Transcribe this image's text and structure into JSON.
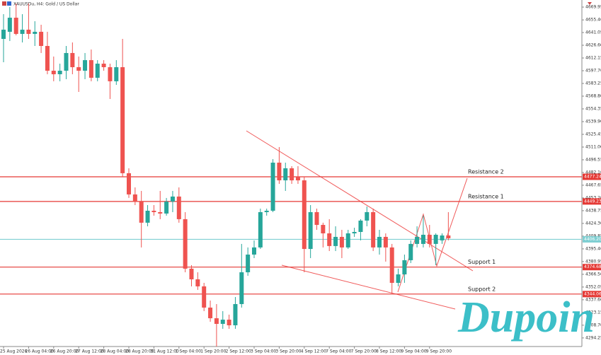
{
  "chart_data": {
    "type": "candlestick",
    "title": "XAUUSDu, H4:  Gold / US Dollar",
    "logo": "Dupoin",
    "categories": [
      "25 Aug 2026",
      null,
      null,
      null,
      "26 Aug 04:00",
      null,
      null,
      null,
      "26 Aug 20:00",
      null,
      null,
      null,
      "27 Aug 12:00",
      null,
      null,
      null,
      "28 Aug 04:00",
      null,
      null,
      null,
      "28 Aug 20:00",
      null,
      null,
      null,
      "31 Aug 12:00",
      null,
      null,
      null,
      "1 Sep 04:00",
      null,
      null,
      null,
      "1 Sep 20:00",
      null,
      null,
      null,
      "2 Sep 12:00",
      null,
      null,
      null,
      "3 Sep 04:00",
      null,
      null,
      null,
      "3 Sep 20:00",
      null,
      null,
      null,
      "4 Sep 12:00",
      null,
      null,
      null,
      "7 Sep 04:00",
      null,
      null,
      null,
      "7 Sep 20:00",
      null,
      null,
      null,
      "8 Sep 12:00",
      null,
      null,
      null,
      "9 Sep 04:00",
      null,
      null,
      null,
      "9 Sep 20:00",
      null,
      null,
      null
    ],
    "open": [
      4633.8,
      4641.9,
      4657.9,
      4639.5,
      4644.3,
      4639.5,
      4641.9,
      4625.8,
      4597.7,
      4593.7,
      4597.7,
      4617.8,
      4601.7,
      4597.7,
      4609.7,
      4589.7,
      4605.7,
      4601.7,
      4585.7,
      4601.7,
      4481.3,
      4457.2,
      4449.1,
      4425.1,
      4438.7,
      4437.1,
      4435.5,
      4449.1,
      4454.8,
      4429.1,
      4372.9,
      4360.8,
      4352.8,
      4328.7,
      4316.6,
      4310.2,
      4315.0,
      4308.6,
      4332.7,
      4368.8,
      4388.9,
      4397.0,
      4437.1,
      4438.7,
      4493.3,
      4473.2,
      4486.9,
      4477.3,
      4473.2,
      4395.3,
      4437.1,
      4422.6,
      4413.0,
      4398.6,
      4409.0,
      4397.0,
      4413.0,
      4414.6,
      4427.5,
      4437.1,
      4397.0,
      4409.0,
      4397.0,
      4356.8,
      4366.4,
      4382.5,
      4401.0,
      4401.0,
      4411.4,
      4401.0,
      4405.0,
      4410.6
    ],
    "high": [
      4661.9,
      4670.0,
      4674.0,
      4661.9,
      4674.0,
      4653.9,
      4649.9,
      4641.9,
      4613.8,
      4605.7,
      4625.8,
      4629.8,
      4613.8,
      4617.8,
      4621.8,
      4609.7,
      4609.7,
      4605.7,
      4609.7,
      4633.8,
      4486.9,
      4465.2,
      4461.2,
      4445.1,
      4445.1,
      4461.2,
      4453.2,
      4461.2,
      4465.2,
      4437.1,
      4376.9,
      4368.8,
      4356.8,
      4336.7,
      4332.7,
      4324.7,
      4320.7,
      4340.7,
      4401.0,
      4397.0,
      4405.0,
      4441.1,
      4441.1,
      4497.3,
      4511.0,
      4493.3,
      4489.3,
      4489.3,
      4477.3,
      4445.1,
      4441.1,
      4425.1,
      4429.1,
      4421.0,
      4417.0,
      4417.0,
      4419.4,
      4429.1,
      4443.5,
      4441.1,
      4417.0,
      4413.0,
      4401.0,
      4372.9,
      4388.9,
      4405.0,
      4421.0,
      4433.1,
      4422.6,
      4413.0,
      4413.0,
      4437.1
    ],
    "low": [
      4607.3,
      4631.4,
      4637.9,
      4629.8,
      4633.8,
      4625.8,
      4617.8,
      4593.7,
      4585.7,
      4585.7,
      4588.1,
      4593.7,
      4573.6,
      4588.1,
      4585.7,
      4585.7,
      4597.7,
      4565.6,
      4581.6,
      4477.3,
      4453.2,
      4445.1,
      4397.0,
      4421.0,
      4433.1,
      4429.1,
      4433.1,
      4437.1,
      4425.1,
      4368.8,
      4352.8,
      4348.8,
      4324.7,
      4312.6,
      4284.5,
      4304.6,
      4304.6,
      4304.6,
      4328.7,
      4364.8,
      4384.9,
      4395.3,
      4433.1,
      4437.1,
      4469.2,
      4461.2,
      4469.2,
      4469.2,
      4368.8,
      4384.9,
      4417.0,
      4397.0,
      4392.9,
      4392.9,
      4384.9,
      4395.3,
      4409.0,
      4405.0,
      4421.0,
      4392.9,
      4388.9,
      4380.9,
      4344.8,
      4352.8,
      4356.8,
      4379.3,
      4397.0,
      4397.0,
      4397.0,
      4376.9,
      4401.0,
      4405.0
    ],
    "close": [
      4644.3,
      4657.9,
      4639.5,
      4644.3,
      4639.5,
      4641.9,
      4625.8,
      4597.7,
      4593.7,
      4597.7,
      4617.8,
      4601.7,
      4597.7,
      4609.7,
      4589.7,
      4605.7,
      4601.7,
      4585.7,
      4601.7,
      4481.3,
      4457.2,
      4449.1,
      4425.1,
      4438.7,
      4437.1,
      4435.5,
      4449.1,
      4454.8,
      4429.1,
      4372.9,
      4360.8,
      4352.8,
      4328.7,
      4316.6,
      4310.2,
      4315.0,
      4308.6,
      4332.7,
      4368.8,
      4388.9,
      4397.0,
      4437.1,
      4438.7,
      4493.3,
      4473.2,
      4486.9,
      4473.2,
      4473.2,
      4395.3,
      4437.1,
      4422.6,
      4413.0,
      4398.6,
      4409.0,
      4397.0,
      4413.0,
      4414.6,
      4427.5,
      4437.1,
      4397.0,
      4409.0,
      4397.0,
      4356.8,
      4366.4,
      4382.5,
      4401.0,
      4409.0,
      4411.4,
      4401.0,
      4411.4,
      4410.6,
      4407.4
    ],
    "up_color": "#26a69a",
    "down_color": "#ef5350",
    "ylim": [
      4284.5,
      4678.0
    ],
    "yticks": [
      4669.95,
      {
        "value": 4655.4,
        "label": "4655.40"
      },
      4641.05,
      {
        "value": 4626.6,
        "label": "4626.60"
      },
      4612.15,
      {
        "value": 4597.7,
        "label": "4597.70"
      },
      4583.25,
      {
        "value": 4568.8,
        "label": "4568.80"
      },
      4554.35,
      {
        "value": 4539.9,
        "label": "4539.90"
      },
      4525.45,
      {
        "value": 4511,
        "label": "4511.00"
      },
      4496.55,
      {
        "value": 4482.1,
        "label": "4482.10"
      },
      4467.65,
      {
        "value": 4453.2,
        "label": "4453.20"
      },
      4438.75,
      {
        "value": 4424.3,
        "label": "4424.30"
      },
      4409.85,
      {
        "value": 4395.4,
        "label": "4395.40"
      },
      4380.95,
      {
        "value": 4366.5,
        "label": "4366.50"
      },
      4352.05,
      {
        "value": 4337.6,
        "label": "4337.60"
      },
      4323.15,
      {
        "value": 4308.7,
        "label": "4308.70"
      },
      4294.25
    ],
    "levels": [
      {
        "name": "Resistance 2",
        "value": 4477.24,
        "color": "#e53935"
      },
      {
        "name": "Resistance 1",
        "value": 4449.23,
        "color": "#e53935"
      },
      {
        "value": 4406.2,
        "value_label": "4406.20",
        "color": "#7fcfd2"
      },
      {
        "name": "Support 1",
        "value": 4374.68,
        "color": "#e53935"
      },
      {
        "name": "Support 2",
        "value": 4344.06,
        "color": "#e53935"
      }
    ]
  }
}
